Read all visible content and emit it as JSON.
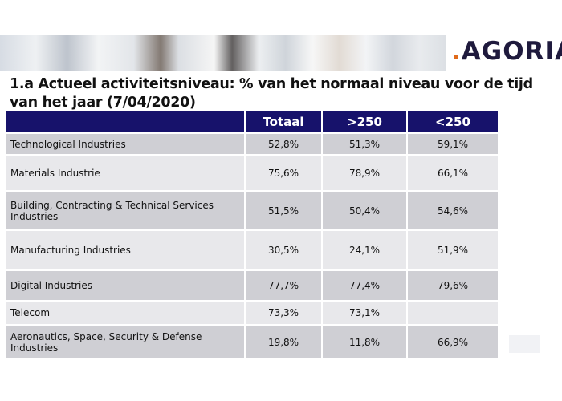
{
  "header": {
    "logo_dot": ".",
    "logo_text": "AGORIA"
  },
  "slide": {
    "title": "1.a Actueel activiteitsniveau: % van het normaal niveau voor de tijd van het jaar (7/04/2020)"
  },
  "table": {
    "columns": [
      "",
      "Totaal",
      ">250",
      "<250"
    ],
    "rows": [
      {
        "label": "Technological Industries",
        "totaal": "52,8%",
        "gt250": "51,3%",
        "lt250": "59,1%"
      },
      {
        "label": "Materials Industrie",
        "totaal": "75,6%",
        "gt250": "78,9%",
        "lt250": "66,1%"
      },
      {
        "label": "Building, Contracting & Technical Services Industries",
        "totaal": "51,5%",
        "gt250": "50,4%",
        "lt250": "54,6%"
      },
      {
        "label": "Manufacturing Industries",
        "totaal": "30,5%",
        "gt250": "24,1%",
        "lt250": "51,9%"
      },
      {
        "label": "Digital Industries",
        "totaal": "77,7%",
        "gt250": "77,4%",
        "lt250": "79,6%"
      },
      {
        "label": "Telecom",
        "totaal": "73,3%",
        "gt250": "73,1%",
        "lt250": ""
      },
      {
        "label": " Aeronautics, Space, Security & Defense Industries",
        "totaal": "19,8%",
        "gt250": "11,8%",
        "lt250": "66,9%"
      }
    ]
  },
  "colors": {
    "header_bg": "#17126b",
    "row_dark": "#cfcfd4",
    "row_light": "#e8e8eb",
    "logo_accent": "#e06a1b",
    "logo_text": "#1f1a3d"
  }
}
